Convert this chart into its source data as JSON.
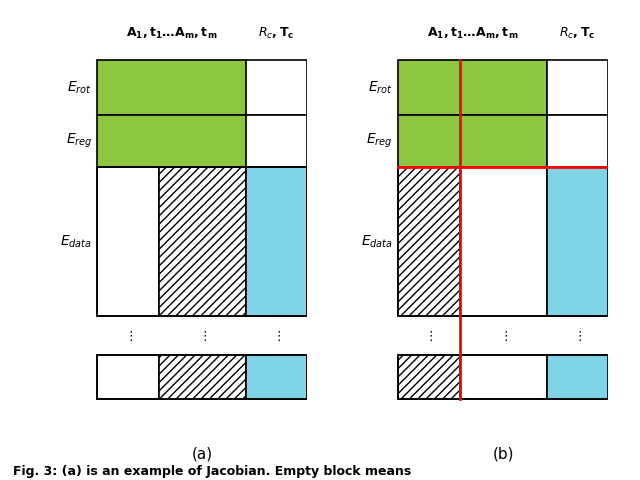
{
  "fig_width": 6.4,
  "fig_height": 4.8,
  "bg_color": "#ffffff",
  "green_color": "#8dc63f",
  "cyan_color": "#7fd4e8",
  "hatch_color": "#000000",
  "red_color": "#ff0000",
  "black_color": "#000000",
  "caption_a": "(a)",
  "caption_b": "(b)",
  "bottom_text": "Fig. 3: (a) is an example of Jacobian. Empty block means"
}
